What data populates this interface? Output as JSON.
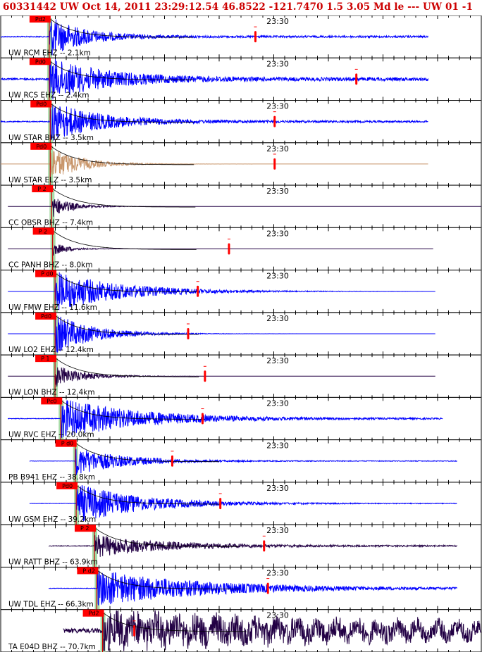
{
  "title": "60331442 UW Oct 14, 2011 23:29:12.54    46.8522 -121.7470  1.5 3.05 Md le --- UW 01   -1",
  "chart_data": {
    "type": "line",
    "title": "60331442 UW Oct 14, 2011 23:29:12.54    46.8522 -121.7470  1.5 3.05 Md le --- UW 01   -1",
    "time_label": "23:30",
    "xlabel": "",
    "ylabel": "",
    "grid": false,
    "series": [
      {
        "name": "UW RCM EHZ -- 2.1km",
        "label": "UW RCM EHZ -- 2.1km",
        "color": "#0000ff",
        "pick_label": "Pd2",
        "pick": 0.101,
        "start": 0.0,
        "end": 0.89,
        "amp": 1.0,
        "decay": 0.07,
        "noise": 0.06,
        "coda": 0.53
      },
      {
        "name": "UW RCS EHZ -- 2.4km",
        "label": "UW RCS EHZ -- 2.4km",
        "color": "#0000ff",
        "pick_label": "Pd0",
        "pick": 0.101,
        "start": 0.0,
        "end": 0.89,
        "amp": 1.0,
        "decay": 0.12,
        "noise": 0.1,
        "coda": 0.74
      },
      {
        "name": "UW STAR BHZ -- 3.5km",
        "label": "UW STAR BHZ -- 3.5km",
        "color": "#0000ff",
        "pick_label": "Pd0",
        "pick": 0.103,
        "start": 0.0,
        "end": 0.89,
        "amp": 1.0,
        "decay": 0.1,
        "noise": 0.06,
        "coda": 0.57
      },
      {
        "name": "UW STAR ELZ -- 3.5km",
        "label": "UW STAR ELZ -- 3.5km",
        "color": "#c8956a",
        "pick_label": "Pd0",
        "pick": 0.103,
        "start": 0.0,
        "end": 0.89,
        "amp": 0.9,
        "decay": 0.06,
        "noise": 0.0,
        "coda": 0.57
      },
      {
        "name": "CC OBSR BHZ -- 7.4km",
        "label": "CC OBSR BHZ -- 7.4km",
        "color": "#220044",
        "pick_label": "P 2",
        "pick": 0.106,
        "start": 0.015,
        "end": 1.0,
        "amp": 0.55,
        "decay": 0.04,
        "noise": 0.0,
        "coda": null
      },
      {
        "name": "CC PANH BHZ -- 8.0km",
        "label": "CC PANH BHZ -- 8.0km",
        "color": "#220044",
        "pick_label": "P 2",
        "pick": 0.108,
        "start": 0.015,
        "end": 0.9,
        "amp": 0.35,
        "decay": 0.03,
        "noise": 0.0,
        "coda": 0.475
      },
      {
        "name": "UW FMW EHZ -- 11.6km",
        "label": "UW FMW EHZ -- 11.6km",
        "color": "#0000ff",
        "pick_label": "P d0",
        "pick": 0.113,
        "start": 0.015,
        "end": 0.905,
        "amp": 1.0,
        "decay": 0.14,
        "noise": 0.0,
        "coda": 0.41
      },
      {
        "name": "UW LO2 EHZ -- 12.4km",
        "label": "UW LO2 EHZ -- 12.4km",
        "color": "#0000ff",
        "pick_label": "Pd0",
        "pick": 0.113,
        "start": 0.015,
        "end": 0.905,
        "amp": 1.0,
        "decay": 0.08,
        "noise": 0.0,
        "coda": 0.39
      },
      {
        "name": "UW LON BHZ -- 12.4km",
        "label": "UW LON BHZ -- 12.4km",
        "color": "#220044",
        "pick_label": "P 1",
        "pick": 0.113,
        "start": 0.015,
        "end": 0.905,
        "amp": 0.55,
        "decay": 0.06,
        "noise": 0.0,
        "coda": 0.425
      },
      {
        "name": "UW RVC EHZ -- 20.0km",
        "label": "UW RVC EHZ -- 20.0km",
        "color": "#0000ff",
        "pick_label": "Pc0",
        "pick": 0.125,
        "start": 0.015,
        "end": 0.92,
        "amp": 1.0,
        "decay": 0.16,
        "noise": 0.04,
        "coda": 0.42
      },
      {
        "name": "PB B941 EHZ -- 38.8km",
        "label": "PB B941 EHZ -- 38.8km",
        "color": "#0000ff",
        "pick_label": "P d0",
        "pick": 0.155,
        "start": 0.06,
        "end": 0.95,
        "amp": 0.7,
        "decay": 0.1,
        "noise": 0.02,
        "coda": 0.357
      },
      {
        "name": "UW GSM EHZ -- 39.2km",
        "label": "UW GSM EHZ -- 39.2km",
        "color": "#0000ff",
        "pick_label": "Pd0",
        "pick": 0.157,
        "start": 0.06,
        "end": 0.95,
        "amp": 1.0,
        "decay": 0.13,
        "noise": 0.02,
        "coda": 0.457
      },
      {
        "name": "UW RATT BHZ -- 63.9km",
        "label": "UW RATT BHZ -- 63.9km",
        "color": "#220044",
        "pick_label": "P 2",
        "pick": 0.195,
        "start": 0.1,
        "end": 0.95,
        "amp": 0.55,
        "decay": 0.14,
        "noise": 0.04,
        "coda": 0.548
      },
      {
        "name": "UW TDL EHZ -- 66.3km",
        "label": "UW TDL EHZ -- 66.3km",
        "color": "#0000ff",
        "pick_label": "P d2",
        "pick": 0.2,
        "start": 0.1,
        "end": 0.95,
        "amp": 0.9,
        "decay": 0.22,
        "noise": 0.03,
        "coda": 0.556
      },
      {
        "name": "TA E04D BHZ -- 70.7km",
        "label": "TA E04D BHZ -- 70.7km",
        "color": "#220044",
        "pick_label": "Pd2",
        "pick": 0.212,
        "start": 0.13,
        "end": 1.0,
        "amp": 0.7,
        "decay": 0.6,
        "noise": 0.28,
        "coda": 0.278
      }
    ]
  }
}
